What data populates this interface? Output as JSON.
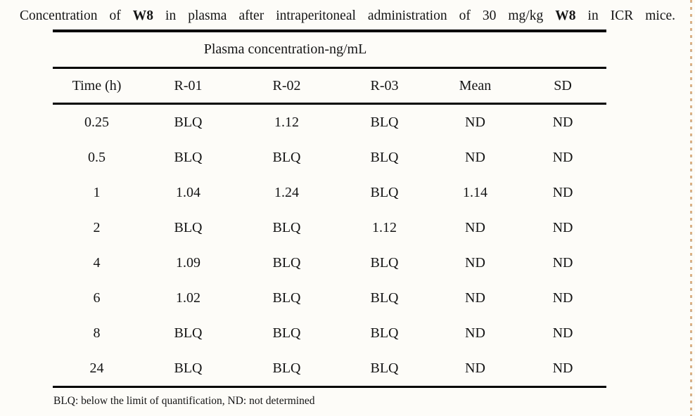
{
  "page": {
    "background_color": "#fdfcf8",
    "edge_dash_color": "#dcb083"
  },
  "caption": {
    "segments": [
      {
        "text": "Concentration of ",
        "bold": false
      },
      {
        "text": "W8",
        "bold": true
      },
      {
        "text": " in plasma after intraperitoneal administration of 30 mg/kg ",
        "bold": false
      },
      {
        "text": "W8",
        "bold": true
      },
      {
        "text": " in ICR mice.",
        "bold": false
      }
    ]
  },
  "table": {
    "group_header": "Plasma concentration-ng/mL",
    "columns": [
      "Time (h)",
      "R-01",
      "R-02",
      "R-03",
      "Mean",
      "SD"
    ],
    "rows": [
      [
        "0.25",
        "BLQ",
        "1.12",
        "BLQ",
        "ND",
        "ND"
      ],
      [
        "0.5",
        "BLQ",
        "BLQ",
        "BLQ",
        "ND",
        "ND"
      ],
      [
        "1",
        "1.04",
        "1.24",
        "BLQ",
        "1.14",
        "ND"
      ],
      [
        "2",
        "BLQ",
        "BLQ",
        "1.12",
        "ND",
        "ND"
      ],
      [
        "4",
        "1.09",
        "BLQ",
        "BLQ",
        "ND",
        "ND"
      ],
      [
        "6",
        "1.02",
        "BLQ",
        "BLQ",
        "ND",
        "ND"
      ],
      [
        "8",
        "BLQ",
        "BLQ",
        "BLQ",
        "ND",
        "ND"
      ],
      [
        "24",
        "BLQ",
        "BLQ",
        "BLQ",
        "ND",
        "ND"
      ]
    ],
    "footnote": "BLQ: below the limit of quantification, ND: not determined"
  }
}
